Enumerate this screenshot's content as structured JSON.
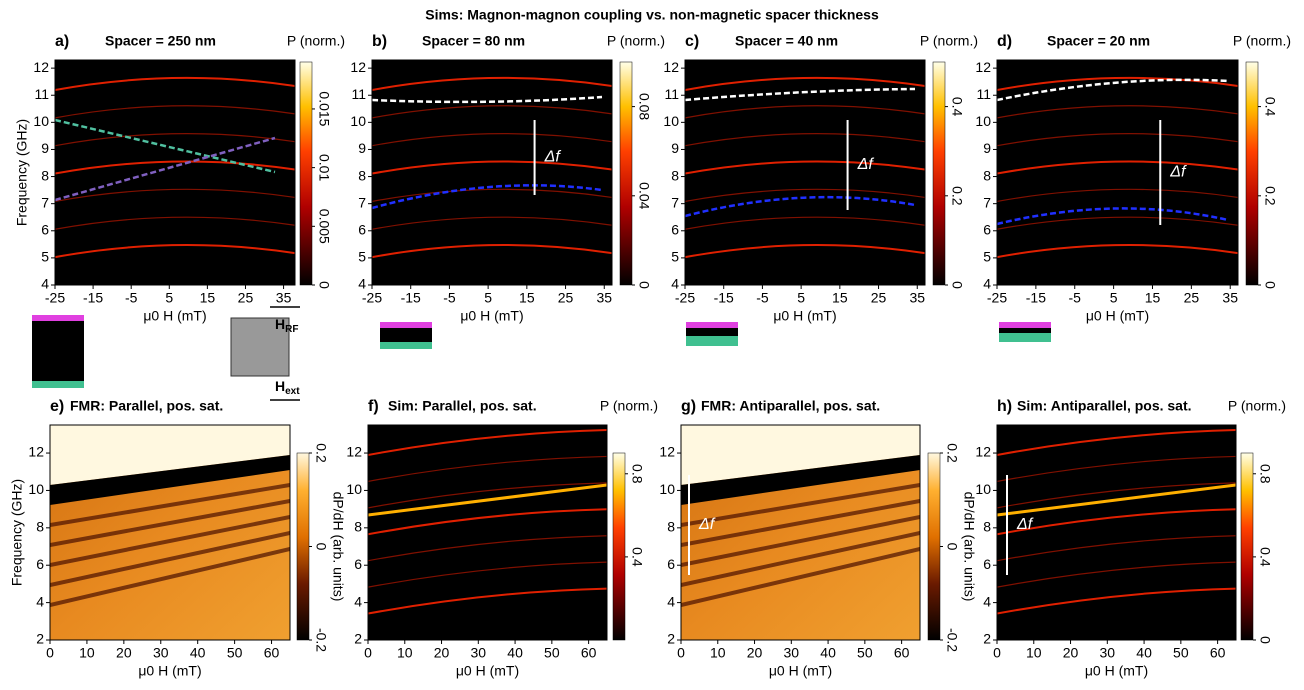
{
  "title": "Sims: Magnon-magnon coupling vs. non-magnetic spacer thickness",
  "insets": {
    "h_rf": {
      "label": "H",
      "sub": "RF"
    },
    "h_ext": {
      "label": "H",
      "sub": "ext"
    }
  },
  "chart_data": [
    {
      "type": "heatmap",
      "kind": "sim",
      "panel": "a)",
      "title": "Spacer = 250 nm",
      "xlabel": "μ0 H (mT)",
      "ylabel": "Frequency (GHz)",
      "xlim": [
        -25,
        38
      ],
      "xticks": [
        -25,
        -15,
        -5,
        5,
        15,
        25,
        35
      ],
      "ylim": [
        4,
        12.3
      ],
      "yticks": [
        4,
        5,
        6,
        7,
        8,
        9,
        10,
        11,
        12
      ],
      "colorbar": {
        "label": "P (norm.)",
        "lim": [
          0,
          0.019
        ],
        "ticks": [
          0,
          0.005,
          0.01,
          0.015
        ]
      },
      "annotations": []
    },
    {
      "type": "heatmap",
      "kind": "sim",
      "panel": "b)",
      "title": "Spacer = 80 nm",
      "xlabel": "μ0 H (mT)",
      "xlim": [
        -25,
        37
      ],
      "xticks": [
        -25,
        -15,
        -5,
        5,
        15,
        25,
        35
      ],
      "ylim": [
        4,
        12.3
      ],
      "yticks": [
        4,
        5,
        6,
        7,
        8,
        9,
        10,
        11,
        12
      ],
      "colorbar": {
        "label": "P (norm.)",
        "lim": [
          0,
          0.1
        ],
        "ticks": [
          0,
          0.04,
          0.08
        ]
      },
      "annotations": [
        "Δf"
      ]
    },
    {
      "type": "heatmap",
      "kind": "sim",
      "panel": "c)",
      "title": "Spacer = 40 nm",
      "xlabel": "μ0 H (mT)",
      "xlim": [
        -25,
        37
      ],
      "xticks": [
        -25,
        -15,
        -5,
        5,
        15,
        25,
        35
      ],
      "ylim": [
        4,
        12.3
      ],
      "yticks": [
        4,
        5,
        6,
        7,
        8,
        9,
        10,
        11,
        12
      ],
      "colorbar": {
        "label": "P (norm.)",
        "lim": [
          0,
          0.5
        ],
        "ticks": [
          0,
          0.2,
          0.4
        ]
      },
      "annotations": [
        "Δf"
      ]
    },
    {
      "type": "heatmap",
      "kind": "sim",
      "panel": "d)",
      "title": "Spacer = 20 nm",
      "xlabel": "μ0 H (mT)",
      "xlim": [
        -25,
        37
      ],
      "xticks": [
        -25,
        -15,
        -5,
        5,
        15,
        25,
        35
      ],
      "ylim": [
        4,
        12.3
      ],
      "yticks": [
        4,
        5,
        6,
        7,
        8,
        9,
        10,
        11,
        12
      ],
      "colorbar": {
        "label": "P (norm.)",
        "lim": [
          0,
          0.5
        ],
        "ticks": [
          0,
          0.2,
          0.4
        ]
      },
      "annotations": [
        "Δf"
      ]
    },
    {
      "type": "heatmap",
      "kind": "fmr",
      "panel": "e)",
      "title": "FMR: Parallel, pos. sat.",
      "xlabel": "μ0 H (mT)",
      "ylabel": "Frequency (GHz)",
      "xlim": [
        0,
        65
      ],
      "xticks": [
        0,
        10,
        20,
        30,
        40,
        50,
        60
      ],
      "ylim": [
        2,
        13.5
      ],
      "yticks": [
        2,
        4,
        6,
        8,
        10,
        12
      ],
      "colorbar": {
        "label": "dP/dH (arb. units)",
        "lim": [
          -0.2,
          0.2
        ],
        "ticks": [
          -0.2,
          0,
          0.2
        ]
      },
      "annotations": []
    },
    {
      "type": "heatmap",
      "kind": "sim",
      "panel": "f)",
      "title": "Sim: Parallel, pos. sat.",
      "xlabel": "μ0 H (mT)",
      "xlim": [
        0,
        65
      ],
      "xticks": [
        0,
        10,
        20,
        30,
        40,
        50,
        60
      ],
      "ylim": [
        2,
        13.5
      ],
      "yticks": [
        2,
        4,
        6,
        8,
        10,
        12
      ],
      "colorbar": {
        "label": "P (norm.)",
        "lim": [
          0,
          0.9
        ],
        "ticks": [
          0.4,
          0.8
        ]
      },
      "annotations": []
    },
    {
      "type": "heatmap",
      "kind": "fmr",
      "panel": "g)",
      "title": "FMR: Antiparallel, pos. sat.",
      "xlabel": "μ0 H (mT)",
      "xlim": [
        0,
        65
      ],
      "xticks": [
        0,
        10,
        20,
        30,
        40,
        50,
        60
      ],
      "ylim": [
        2,
        13.5
      ],
      "yticks": [
        2,
        4,
        6,
        8,
        10,
        12
      ],
      "colorbar": {
        "label": "dP/dH (arb. units)",
        "lim": [
          -0.2,
          0.2
        ],
        "ticks": [
          -0.2,
          0,
          0.2
        ]
      },
      "annotations": [
        "Δf"
      ]
    },
    {
      "type": "heatmap",
      "kind": "sim",
      "panel": "h)",
      "title": "Sim: Antiparallel, pos. sat.",
      "xlabel": "μ0 H (mT)",
      "xlim": [
        0,
        65
      ],
      "xticks": [
        0,
        10,
        20,
        30,
        40,
        50,
        60
      ],
      "ylim": [
        2,
        13.5
      ],
      "yticks": [
        2,
        4,
        6,
        8,
        10,
        12
      ],
      "colorbar": {
        "label": "P (norm.)",
        "lim": [
          0,
          0.9
        ],
        "ticks": [
          0,
          0.4,
          0.8
        ]
      },
      "annotations": [
        "Δf"
      ]
    }
  ]
}
